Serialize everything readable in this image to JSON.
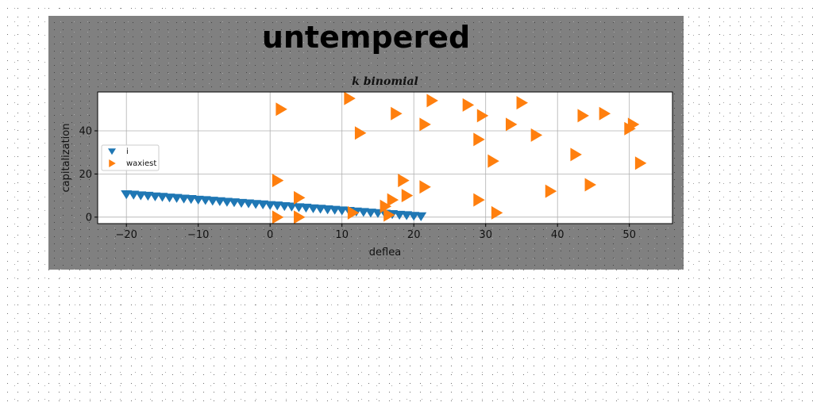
{
  "chart_data": {
    "type": "scatter",
    "title": "untempered",
    "subtitle": "k binomial",
    "xlabel": "deflea",
    "ylabel": "capitalization",
    "xlim": [
      -24,
      56
    ],
    "ylim": [
      -3,
      58
    ],
    "xticks": [
      -20,
      -10,
      0,
      10,
      20,
      30,
      40,
      50
    ],
    "yticks": [
      0,
      20,
      40
    ],
    "grid": true,
    "legend_position": "center-left",
    "series": [
      {
        "name": "i",
        "marker": "triangle-down",
        "color": "#1f77b4",
        "points": [
          [
            -20,
            10.5
          ],
          [
            -19,
            10.3
          ],
          [
            -18,
            10.0
          ],
          [
            -17,
            9.8
          ],
          [
            -16,
            9.5
          ],
          [
            -15,
            9.3
          ],
          [
            -14,
            9.0
          ],
          [
            -13,
            8.8
          ],
          [
            -12,
            8.5
          ],
          [
            -11,
            8.3
          ],
          [
            -10,
            8.0
          ],
          [
            -9,
            7.8
          ],
          [
            -8,
            7.5
          ],
          [
            -7,
            7.3
          ],
          [
            -6,
            7.0
          ],
          [
            -5,
            6.8
          ],
          [
            -4,
            6.5
          ],
          [
            -3,
            6.3
          ],
          [
            -2,
            6.0
          ],
          [
            -1,
            5.8
          ],
          [
            0,
            5.5
          ],
          [
            1,
            5.3
          ],
          [
            2,
            5.0
          ],
          [
            3,
            4.8
          ],
          [
            4,
            4.5
          ],
          [
            5,
            4.3
          ],
          [
            6,
            4.0
          ],
          [
            7,
            3.8
          ],
          [
            8,
            3.5
          ],
          [
            9,
            3.3
          ],
          [
            10,
            3.0
          ],
          [
            11,
            2.8
          ],
          [
            12,
            2.5
          ],
          [
            13,
            2.3
          ],
          [
            14,
            2.0
          ],
          [
            15,
            1.8
          ],
          [
            16,
            1.5
          ],
          [
            17,
            1.3
          ],
          [
            18,
            1.0
          ],
          [
            19,
            0.8
          ],
          [
            20,
            0.5
          ],
          [
            21,
            0.3
          ]
        ]
      },
      {
        "name": "waxiest",
        "marker": "triangle-right",
        "color": "#ff7f0e",
        "points": [
          [
            1.5,
            50
          ],
          [
            11,
            55
          ],
          [
            12.5,
            39
          ],
          [
            17.5,
            48
          ],
          [
            21.5,
            43
          ],
          [
            22.5,
            54
          ],
          [
            27.5,
            52
          ],
          [
            29.5,
            47
          ],
          [
            33.5,
            43
          ],
          [
            35,
            53
          ],
          [
            37,
            38
          ],
          [
            29,
            36
          ],
          [
            31,
            26
          ],
          [
            42.5,
            29
          ],
          [
            43.5,
            47
          ],
          [
            46.5,
            48
          ],
          [
            50,
            41
          ],
          [
            50.5,
            43
          ],
          [
            51.5,
            25
          ],
          [
            1,
            17
          ],
          [
            4,
            9
          ],
          [
            1,
            0
          ],
          [
            4,
            0
          ],
          [
            11.5,
            2
          ],
          [
            16,
            5
          ],
          [
            16.5,
            1
          ],
          [
            17,
            8
          ],
          [
            19,
            10
          ],
          [
            18.5,
            17
          ],
          [
            21.5,
            14
          ],
          [
            29,
            8
          ],
          [
            31.5,
            2
          ],
          [
            39,
            12
          ],
          [
            44.5,
            15
          ]
        ]
      }
    ]
  }
}
